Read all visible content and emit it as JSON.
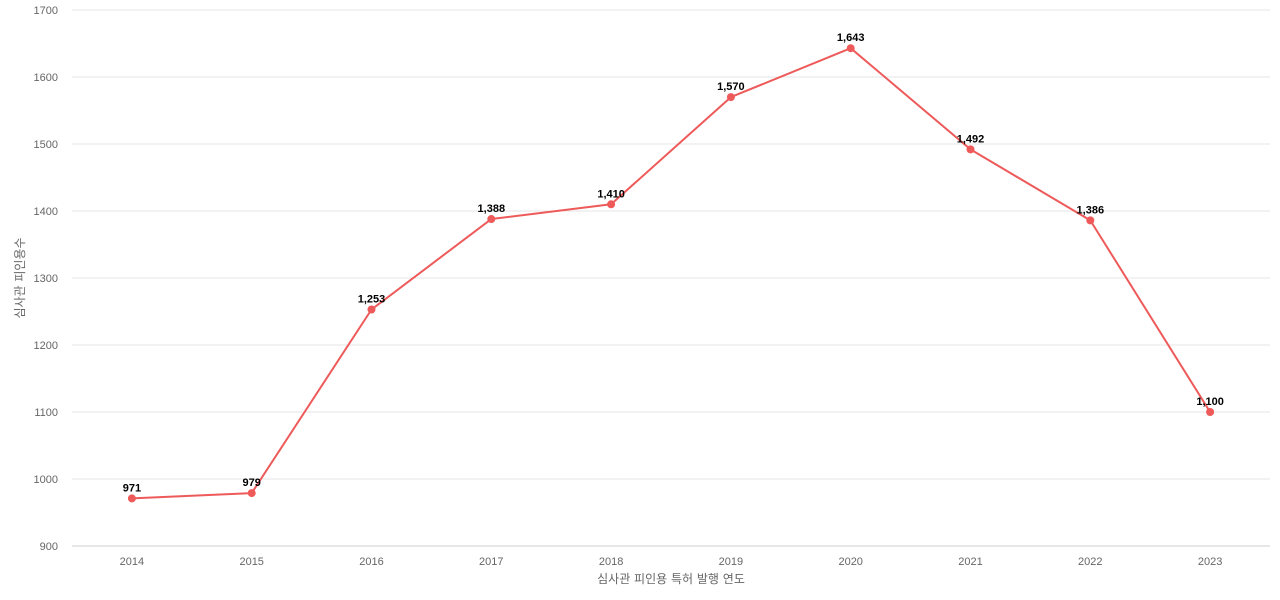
{
  "chart_data": {
    "type": "line",
    "title": "",
    "xlabel": "심사관 피인용 특허 발행 연도",
    "ylabel": "심사관 피인용수",
    "categories": [
      "2014",
      "2015",
      "2016",
      "2017",
      "2018",
      "2019",
      "2020",
      "2021",
      "2022",
      "2023"
    ],
    "series": [
      {
        "values": [
          971,
          979,
          1253,
          1388,
          1410,
          1570,
          1643,
          1492,
          1386,
          1100
        ],
        "labels": [
          "971",
          "979",
          "1,253",
          "1,388",
          "1,410",
          "1,570",
          "1,643",
          "1,492",
          "1,386",
          "1,100"
        ],
        "color": "#ee5a5a"
      }
    ],
    "ylim": [
      900,
      1700
    ],
    "yticks": [
      "900",
      "1000",
      "1100",
      "1200",
      "1300",
      "1400",
      "1500",
      "1600",
      "1700"
    ],
    "grid": true,
    "legend": "none"
  }
}
